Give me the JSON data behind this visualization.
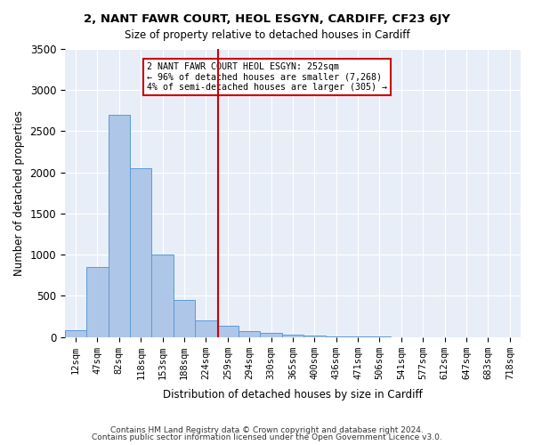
{
  "title1": "2, NANT FAWR COURT, HEOL ESGYN, CARDIFF, CF23 6JY",
  "title2": "Size of property relative to detached houses in Cardiff",
  "xlabel": "Distribution of detached houses by size in Cardiff",
  "ylabel": "Number of detached properties",
  "bin_labels": [
    "12sqm",
    "47sqm",
    "82sqm",
    "118sqm",
    "153sqm",
    "188sqm",
    "224sqm",
    "259sqm",
    "294sqm",
    "330sqm",
    "365sqm",
    "400sqm",
    "436sqm",
    "471sqm",
    "506sqm",
    "541sqm",
    "577sqm",
    "612sqm",
    "647sqm",
    "683sqm",
    "718sqm"
  ],
  "bar_heights": [
    80,
    850,
    2700,
    2050,
    1000,
    450,
    200,
    135,
    75,
    50,
    30,
    15,
    8,
    3,
    2,
    1,
    0,
    0,
    0,
    0,
    0
  ],
  "bar_color": "#aec6e8",
  "bar_edge_color": "#5b9bd5",
  "vline_x": 6.57,
  "vline_color": "#cc0000",
  "annotation_text": "2 NANT FAWR COURT HEOL ESGYN: 252sqm\n← 96% of detached houses are smaller (7,268)\n4% of semi-detached houses are larger (305) →",
  "annotation_box_color": "#ffffff",
  "annotation_box_edge": "#cc0000",
  "background_color": "#e8eef7",
  "footer1": "Contains HM Land Registry data © Crown copyright and database right 2024.",
  "footer2": "Contains public sector information licensed under the Open Government Licence v3.0.",
  "ylim": [
    0,
    3500
  ],
  "yticks": [
    0,
    500,
    1000,
    1500,
    2000,
    2500,
    3000,
    3500
  ]
}
